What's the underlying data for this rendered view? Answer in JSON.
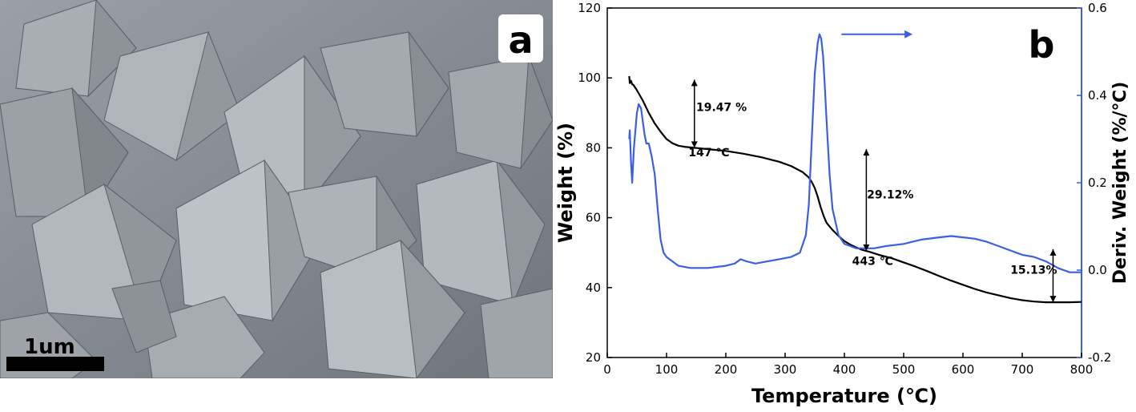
{
  "panel_a": {
    "label": "a",
    "scale_bar_label": "1um"
  },
  "panel_b": {
    "label": "b"
  },
  "chart_data": {
    "type": "line",
    "xlabel": "Temperature (℃)",
    "ylabel_left": "Weight (%)",
    "ylabel_right": "Deriv. Weight (%/℃)",
    "xlim": [
      0,
      800
    ],
    "ylim_left": [
      20,
      120
    ],
    "ylim_right": [
      -0.2,
      0.6
    ],
    "x_ticks": [
      "0",
      "100",
      "200",
      "300",
      "400",
      "500",
      "600",
      "700",
      "800"
    ],
    "y_left_ticks": [
      "20",
      "40",
      "60",
      "80",
      "100",
      "120"
    ],
    "y_right_ticks": [
      "-0.2",
      "0.0",
      "0.2",
      "0.4",
      "0.6"
    ],
    "colors": {
      "weight": "#000000",
      "deriv": "#3a5fe6"
    },
    "series": [
      {
        "axis": "left",
        "x": [
          37,
          38,
          40,
          42,
          44,
          50,
          60,
          70,
          80,
          90,
          100,
          110,
          120,
          130,
          147,
          170,
          200,
          230,
          260,
          290,
          310,
          330,
          340,
          345,
          350,
          355,
          360,
          365,
          370,
          380,
          390,
          400,
          410,
          420,
          430,
          443,
          460,
          480,
          500,
          520,
          540,
          560,
          580,
          600,
          620,
          640,
          660,
          680,
          700,
          720,
          740,
          760,
          780,
          800
        ],
        "values": [
          100.5,
          98.5,
          99.2,
          98.2,
          98.0,
          96.5,
          93.5,
          90.0,
          87.0,
          84.6,
          82.5,
          81.3,
          80.6,
          80.3,
          80.0,
          79.6,
          79.1,
          78.3,
          77.3,
          76.0,
          74.8,
          73.0,
          71.5,
          70.2,
          68.5,
          66.0,
          63.0,
          60.5,
          58.5,
          56.5,
          54.8,
          53.3,
          52.3,
          51.5,
          50.8,
          50.2,
          49.3,
          48.4,
          47.2,
          46.0,
          44.7,
          43.3,
          42.0,
          40.8,
          39.6,
          38.6,
          37.8,
          37.0,
          36.4,
          36.0,
          35.8,
          35.8,
          35.8,
          35.9
        ]
      },
      {
        "axis": "right",
        "x": [
          37,
          38,
          40,
          42,
          45,
          50,
          53,
          57,
          60,
          63,
          66,
          70,
          75,
          80,
          85,
          90,
          95,
          100,
          110,
          120,
          140,
          170,
          200,
          215,
          225,
          235,
          250,
          270,
          290,
          310,
          325,
          335,
          340,
          345,
          350,
          355,
          358,
          361,
          364,
          367,
          370,
          375,
          380,
          390,
          400,
          410,
          420,
          430,
          440,
          450,
          470,
          500,
          530,
          560,
          580,
          600,
          620,
          640,
          660,
          680,
          700,
          720,
          740,
          760,
          770,
          780,
          800
        ],
        "values": [
          0.3,
          0.32,
          0.25,
          0.2,
          0.28,
          0.36,
          0.38,
          0.37,
          0.34,
          0.31,
          0.29,
          0.29,
          0.26,
          0.22,
          0.14,
          0.07,
          0.04,
          0.03,
          0.02,
          0.01,
          0.005,
          0.005,
          0.01,
          0.015,
          0.025,
          0.02,
          0.015,
          0.02,
          0.025,
          0.03,
          0.04,
          0.08,
          0.15,
          0.3,
          0.45,
          0.52,
          0.54,
          0.53,
          0.49,
          0.42,
          0.34,
          0.22,
          0.14,
          0.08,
          0.06,
          0.055,
          0.05,
          0.05,
          0.05,
          0.05,
          0.055,
          0.06,
          0.07,
          0.075,
          0.078,
          0.075,
          0.072,
          0.065,
          0.055,
          0.045,
          0.035,
          0.03,
          0.02,
          0.005,
          0.0,
          -0.005,
          -0.005
        ]
      }
    ],
    "annotations": [
      {
        "text": "19.47 %",
        "x": 150,
        "y": 90.5
      },
      {
        "text": "147 ℃",
        "x": 137,
        "y": 77.6
      },
      {
        "text": "29.12%",
        "x": 438,
        "y": 65.5
      },
      {
        "text": "443 ℃",
        "x": 413,
        "y": 46.5
      },
      {
        "text": "15.13%",
        "x": 680,
        "y": 44.0
      }
    ],
    "arrows": [
      {
        "x": 147,
        "y_from": 80.0,
        "y_to": 99.5
      },
      {
        "x": 437,
        "y_from": 50.5,
        "y_to": 79.6
      },
      {
        "x": 752,
        "y_from": 35.8,
        "y_to": 51.0
      }
    ],
    "right_arrow": {
      "x_from": 395,
      "x_to": 515,
      "y_right": 0.54
    }
  }
}
